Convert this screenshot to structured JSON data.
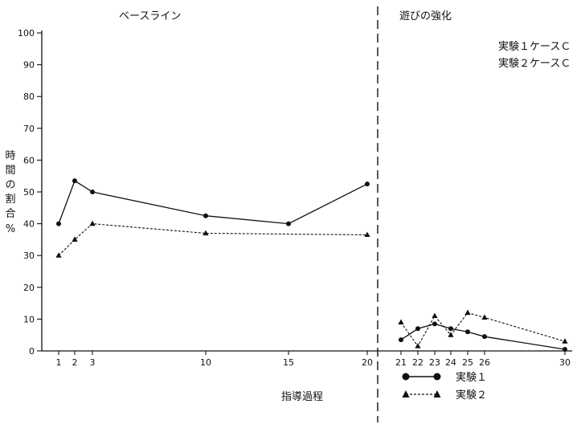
{
  "chart_data": {
    "type": "line",
    "title": "",
    "xlabel": "指導過程",
    "ylabel_chars": [
      "時",
      "間",
      "の",
      "割",
      "合",
      "%"
    ],
    "ylim": [
      0,
      100
    ],
    "y_ticks": [
      "0",
      "10",
      "20",
      "30",
      "40",
      "50",
      "60",
      "70",
      "80",
      "90",
      "100"
    ],
    "x_ticks": [
      {
        "value": 1,
        "label": "1"
      },
      {
        "value": 2,
        "label": "2"
      },
      {
        "value": 3,
        "label": "3"
      },
      {
        "value": 10,
        "label": "10"
      },
      {
        "value": 15,
        "label": "15"
      },
      {
        "value": 20,
        "label": "20"
      },
      {
        "value": 21,
        "label": "21"
      },
      {
        "value": 22,
        "label": "22"
      },
      {
        "value": 23,
        "label": "23"
      },
      {
        "value": 24,
        "label": "24"
      },
      {
        "value": 25,
        "label": "25"
      },
      {
        "value": 26,
        "label": "26"
      },
      {
        "value": 30,
        "label": "30"
      }
    ],
    "phases": [
      {
        "label": "ベースライン"
      },
      {
        "label": "遊びの強化"
      }
    ],
    "case_labels": [
      "実験１ケースＣ",
      "実験２ケースＣ"
    ],
    "series": [
      {
        "name": "実験１",
        "marker": "circle",
        "line": "solid",
        "x": [
          1,
          2,
          3,
          10,
          15,
          20,
          21,
          22,
          23,
          24,
          25,
          26,
          30
        ],
        "y": [
          40,
          53.5,
          50,
          42.5,
          40,
          52.5,
          3.5,
          7,
          8.5,
          7,
          6,
          4.5,
          0.5
        ]
      },
      {
        "name": "実験２",
        "marker": "triangle",
        "line": "dashed",
        "x": [
          1,
          2,
          3,
          10,
          20,
          21,
          22,
          23,
          24,
          25,
          26,
          30
        ],
        "y": [
          30,
          35,
          40,
          37,
          36.5,
          9,
          1.5,
          11,
          5,
          12,
          10.5,
          3
        ]
      }
    ],
    "colors": {
      "ink": "#111111",
      "background": "#ffffff"
    }
  }
}
